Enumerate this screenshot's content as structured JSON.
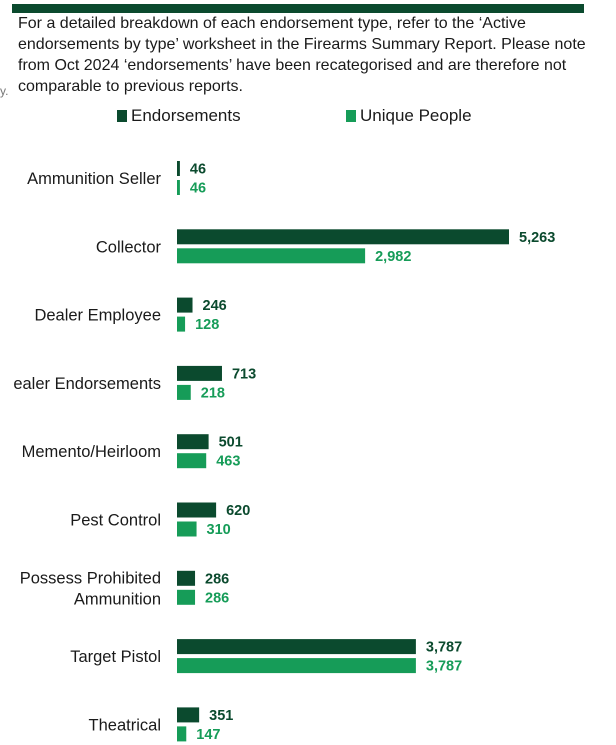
{
  "note": "For a detailed breakdown of each endorsement type, refer to the ‘Active endorsements by type’ worksheet in the Firearms Summary Report. Please note from Oct 2024 ‘endorsements’ have been recategorised and are therefore not comparable to previous reports.",
  "stray_mark": "y.",
  "colors": {
    "endorsements": "#0b4a2e",
    "unique_people": "#169c58",
    "rule": "#0b4a2e"
  },
  "chart_data": {
    "type": "bar",
    "orientation": "horizontal",
    "categories": [
      [
        "Ammunition Seller"
      ],
      [
        "Collector"
      ],
      [
        "Dealer Employee"
      ],
      [
        "ealer Endorsements"
      ],
      [
        "Memento/Heirloom"
      ],
      [
        "Pest Control"
      ],
      [
        "Possess Prohibited",
        "Ammunition"
      ],
      [
        "Target Pistol"
      ],
      [
        "Theatrical"
      ]
    ],
    "series": [
      {
        "name": "Endorsements",
        "values": [
          46,
          5263,
          246,
          713,
          501,
          620,
          286,
          3787,
          351
        ],
        "labels": [
          "46",
          "5,263",
          "246",
          "713",
          "501",
          "620",
          "286",
          "3,787",
          "351"
        ]
      },
      {
        "name": "Unique People",
        "values": [
          46,
          2982,
          128,
          218,
          463,
          310,
          286,
          3787,
          147
        ],
        "labels": [
          "46",
          "2,982",
          "128",
          "218",
          "463",
          "310",
          "286",
          "3,787",
          "147"
        ]
      }
    ],
    "legend_position": "top",
    "grid": false,
    "xlim": [
      0,
      5263
    ]
  }
}
